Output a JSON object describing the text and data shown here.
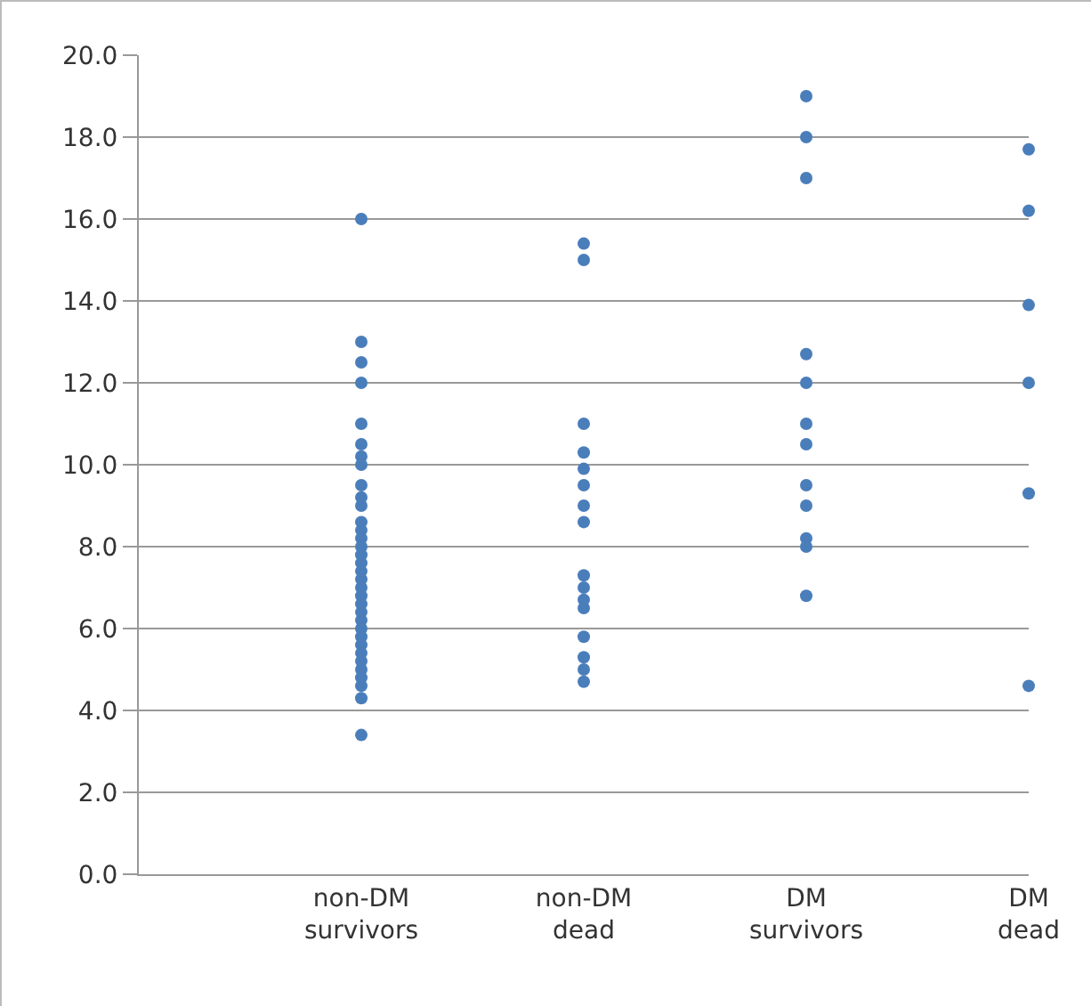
{
  "chart_data": {
    "type": "scatter",
    "categories": [
      "non-DM survivors",
      "non-DM dead",
      "DM survivors",
      "DM dead"
    ],
    "series": [
      {
        "color": "#4a7ebb",
        "x": [
          "non-DM survivors",
          "non-DM survivors",
          "non-DM survivors",
          "non-DM survivors",
          "non-DM survivors",
          "non-DM survivors",
          "non-DM survivors",
          "non-DM survivors",
          "non-DM survivors",
          "non-DM survivors",
          "non-DM survivors",
          "non-DM survivors",
          "non-DM survivors",
          "non-DM survivors",
          "non-DM survivors",
          "non-DM survivors",
          "non-DM survivors",
          "non-DM survivors",
          "non-DM survivors",
          "non-DM survivors",
          "non-DM survivors",
          "non-DM survivors",
          "non-DM survivors",
          "non-DM survivors",
          "non-DM survivors",
          "non-DM survivors",
          "non-DM survivors",
          "non-DM survivors",
          "non-DM survivors",
          "non-DM survivors",
          "non-DM survivors",
          "non-DM survivors",
          "non-DM survivors",
          "non-DM survivors",
          "non-DM survivors"
        ],
        "values": [
          16.0,
          13.0,
          12.5,
          12.0,
          11.0,
          10.5,
          10.2,
          10.0,
          9.5,
          9.2,
          9.0,
          8.6,
          8.4,
          8.2,
          8.0,
          7.8,
          7.6,
          7.4,
          7.2,
          7.0,
          6.8,
          6.6,
          6.4,
          6.2,
          6.0,
          5.8,
          5.6,
          5.4,
          5.2,
          5.0,
          4.8,
          4.6,
          null,
          4.3,
          3.4
        ]
      },
      {
        "color": "#4a7ebb",
        "x": [
          "non-DM dead",
          "non-DM dead",
          "non-DM dead",
          "non-DM dead",
          "non-DM dead",
          "non-DM dead",
          "non-DM dead",
          "non-DM dead",
          "non-DM dead",
          "non-DM dead",
          "non-DM dead",
          "non-DM dead",
          "non-DM dead",
          "non-DM dead",
          "non-DM dead",
          "non-DM dead"
        ],
        "values": [
          15.4,
          15.0,
          11.0,
          10.3,
          9.9,
          9.5,
          9.0,
          8.6,
          7.3,
          7.0,
          6.7,
          6.5,
          5.8,
          5.3,
          5.0,
          4.7
        ]
      },
      {
        "color": "#4a7ebb",
        "x": [
          "DM survivors",
          "DM survivors",
          "DM survivors",
          "DM survivors",
          "DM survivors",
          "DM survivors",
          "DM survivors",
          "DM survivors",
          "DM survivors",
          "DM survivors",
          "DM survivors",
          "DM survivors",
          "DM survivors"
        ],
        "values": [
          19.0,
          18.0,
          17.0,
          12.7,
          12.0,
          11.0,
          10.5,
          9.5,
          null,
          9.0,
          8.2,
          8.0,
          6.8
        ]
      },
      {
        "color": "#4a7ebb",
        "x": [
          "DM dead",
          "DM dead",
          "DM dead",
          "DM dead",
          "DM dead",
          "DM dead"
        ],
        "values": [
          17.7,
          16.2,
          13.9,
          12.0,
          9.3,
          4.6
        ]
      }
    ],
    "ylim": [
      0,
      20
    ],
    "yticks": [
      {
        "value": 0,
        "label": "0.0"
      },
      {
        "value": 2,
        "label": "2.0"
      },
      {
        "value": 4,
        "label": "4.0"
      },
      {
        "value": 6,
        "label": "6.0"
      },
      {
        "value": 8,
        "label": "8.0"
      },
      {
        "value": 10,
        "label": "10.0"
      },
      {
        "value": 12,
        "label": "12.0"
      },
      {
        "value": 14,
        "label": "14.0"
      },
      {
        "value": 16,
        "label": "16.0"
      },
      {
        "value": 18,
        "label": "18.0"
      },
      {
        "value": 20,
        "label": "20.0"
      }
    ],
    "grid": "y",
    "marker": "circle"
  }
}
